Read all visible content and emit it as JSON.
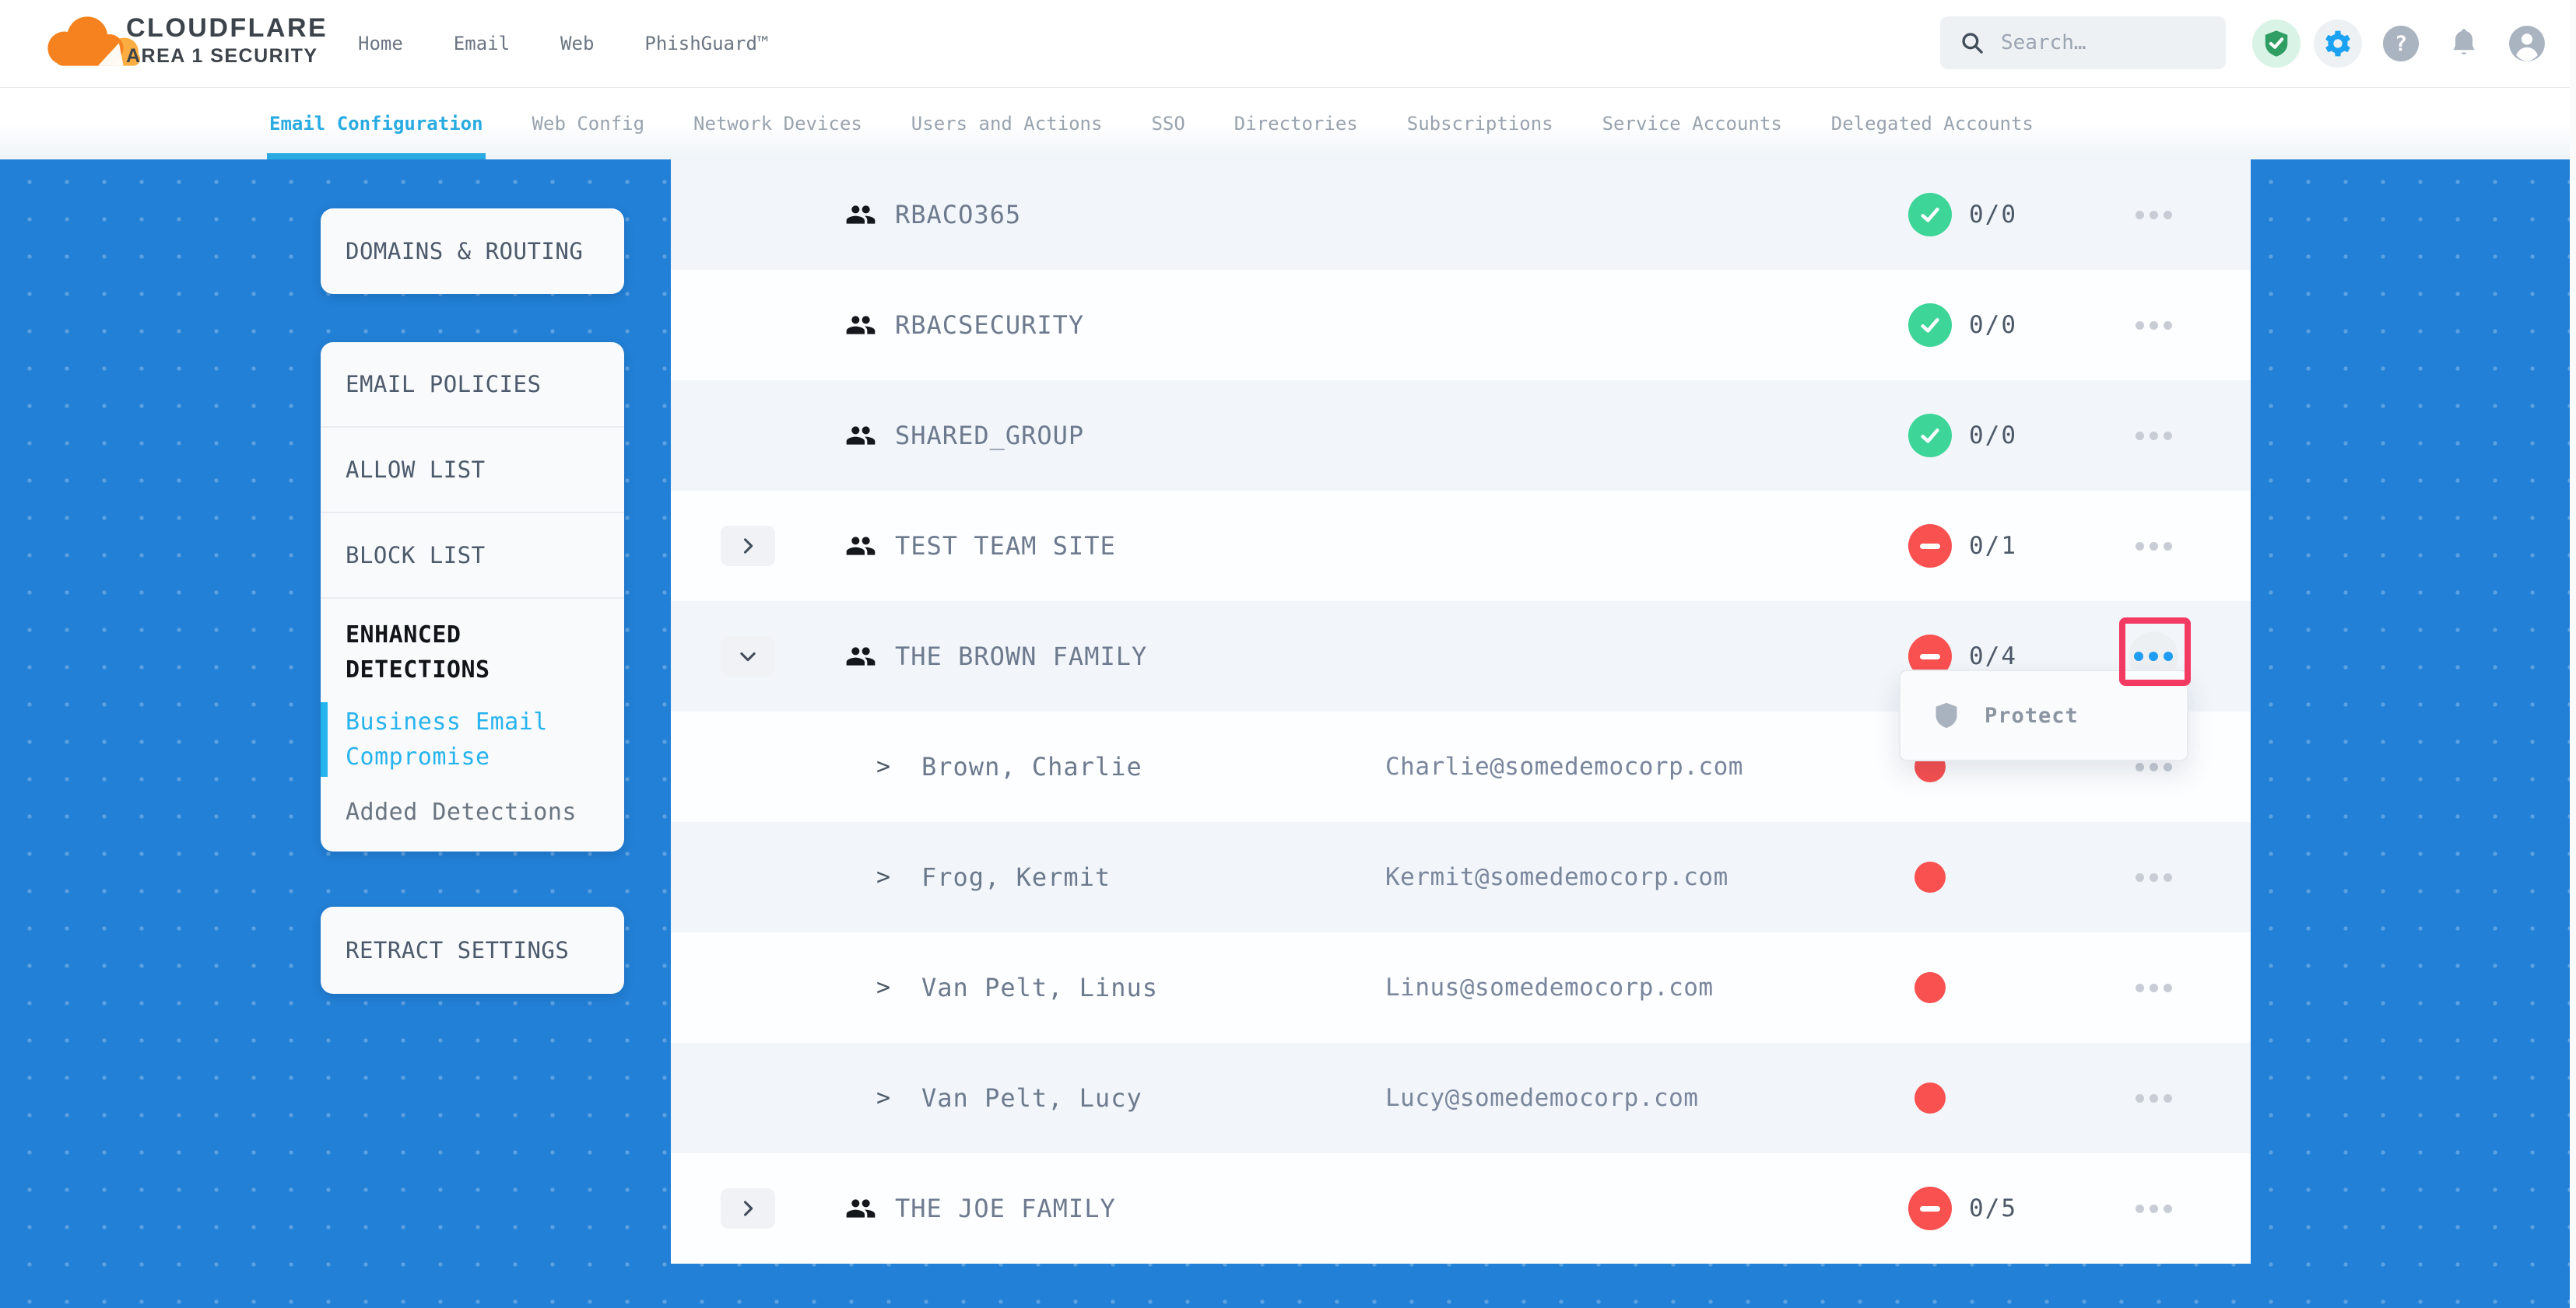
{
  "brand": {
    "title": "CLOUDFLARE",
    "subtitle": "AREA 1 SECURITY"
  },
  "header": {
    "nav": [
      {
        "label": "Home"
      },
      {
        "label": "Email"
      },
      {
        "label": "Web"
      },
      {
        "label": "PhishGuard™"
      }
    ],
    "search": {
      "placeholder": "Search…"
    },
    "icons": [
      {
        "id": "shield-check-icon",
        "style": "success"
      },
      {
        "id": "settings-gear-icon",
        "style": "accent"
      },
      {
        "id": "help-icon",
        "style": "muted",
        "glyph": "?"
      },
      {
        "id": "bell-icon",
        "style": "muted"
      },
      {
        "id": "account-icon",
        "style": "muted"
      }
    ]
  },
  "tabs": [
    {
      "label": "Email Configuration",
      "active": true
    },
    {
      "label": "Web Config",
      "active": false
    },
    {
      "label": "Network Devices",
      "active": false
    },
    {
      "label": "Users and Actions",
      "active": false
    },
    {
      "label": "SSO",
      "active": false
    },
    {
      "label": "Directories",
      "active": false
    },
    {
      "label": "Subscriptions",
      "active": false
    },
    {
      "label": "Service Accounts",
      "active": false
    },
    {
      "label": "Delegated Accounts",
      "active": false
    }
  ],
  "sidebar": {
    "cards": [
      {
        "items": [
          {
            "label": "DOMAINS & ROUTING"
          }
        ]
      },
      {
        "items": [
          {
            "label": "EMAIL POLICIES"
          },
          {
            "label": "ALLOW LIST"
          },
          {
            "label": "BLOCK LIST"
          }
        ],
        "section": {
          "heading": "ENHANCED DETECTIONS",
          "children": [
            {
              "label": "Business Email Compromise",
              "active": true
            },
            {
              "label": "Added Detections",
              "active": false
            }
          ]
        }
      },
      {
        "items": [
          {
            "label": "RETRACT SETTINGS"
          }
        ]
      }
    ]
  },
  "table": {
    "rows": [
      {
        "type": "group",
        "name": "RBACO365",
        "status": "pass",
        "count": "0/0",
        "expandable": false,
        "expanded": false,
        "menu_active": false
      },
      {
        "type": "group",
        "name": "RBACSECURITY",
        "status": "pass",
        "count": "0/0",
        "expandable": false,
        "expanded": false,
        "menu_active": false
      },
      {
        "type": "group",
        "name": "SHARED_GROUP",
        "status": "pass",
        "count": "0/0",
        "expandable": false,
        "expanded": false,
        "menu_active": false
      },
      {
        "type": "group",
        "name": "TEST TEAM SITE",
        "status": "fail",
        "count": "0/1",
        "expandable": true,
        "expanded": false,
        "menu_active": false
      },
      {
        "type": "group",
        "name": "THE BROWN FAMILY",
        "status": "fail",
        "count": "0/4",
        "expandable": true,
        "expanded": true,
        "menu_active": true,
        "highlighted": true
      },
      {
        "type": "member",
        "name": "Brown, Charlie",
        "email": "Charlie@somedemocorp.com",
        "status": "dot"
      },
      {
        "type": "member",
        "name": "Frog, Kermit",
        "email": "Kermit@somedemocorp.com",
        "status": "dot"
      },
      {
        "type": "member",
        "name": "Van Pelt, Linus",
        "email": "Linus@somedemocorp.com",
        "status": "dot"
      },
      {
        "type": "member",
        "name": "Van Pelt, Lucy",
        "email": "Lucy@somedemocorp.com",
        "status": "dot"
      },
      {
        "type": "group",
        "name": "THE JOE FAMILY",
        "status": "fail",
        "count": "0/5",
        "expandable": true,
        "expanded": false,
        "menu_active": false
      }
    ]
  },
  "context_menu": {
    "items": [
      {
        "icon": "shield-icon",
        "label": "Protect"
      }
    ]
  },
  "colors": {
    "background_blue": "#2280d6",
    "accent_cyan": "#29abe2",
    "success_green": "#3ed598",
    "danger_red": "#f95050",
    "highlight_pink": "#f23a63",
    "menu_active_blue": "#1f9df2"
  }
}
